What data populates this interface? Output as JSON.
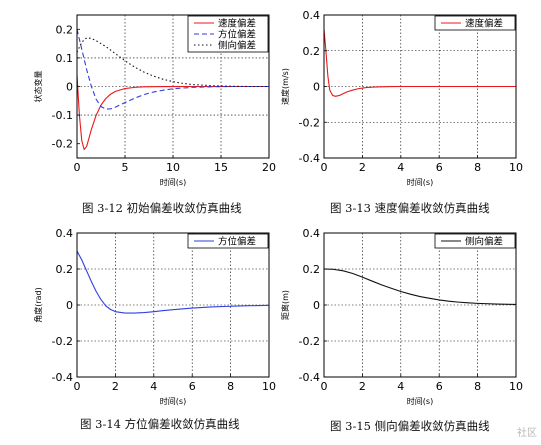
{
  "captions": {
    "fig1": "图 3-12    初始偏差收敛仿真曲线",
    "fig2": "图 3-13  速度偏差收敛仿真曲线",
    "fig3": "图 3-14    方位偏差收敛仿真曲线",
    "fig4": "图 3-15    侧向偏差收敛仿真曲线"
  },
  "watermark": "社区",
  "chart_data": [
    {
      "type": "line",
      "xlabel": "时间(s)",
      "ylabel": "状态变量",
      "xlim": [
        0,
        20
      ],
      "ylim": [
        -0.25,
        0.25
      ],
      "xticks": [
        0,
        5,
        10,
        15,
        20
      ],
      "yticks": [
        -0.2,
        -0.1,
        0,
        0.1,
        0.2
      ],
      "xtick_labels": [
        "0",
        "5",
        "10",
        "15",
        "20"
      ],
      "ytick_labels": [
        "-0.2",
        "-0.1",
        "0",
        "0.1",
        "0.2"
      ],
      "grid": true,
      "legend_position": "top-right",
      "series": [
        {
          "name": "速度偏差",
          "color": "#e8191b",
          "dash": "solid",
          "x": [
            0,
            0.25,
            0.5,
            0.75,
            1.0,
            1.25,
            1.5,
            2.0,
            2.5,
            3.0,
            3.5,
            4.0,
            5.0,
            6.0,
            7.0,
            8.0,
            9.0,
            10.0,
            12.0,
            14.0,
            16.0,
            18.0,
            20.0
          ],
          "y": [
            0.04,
            -0.1,
            -0.19,
            -0.22,
            -0.21,
            -0.18,
            -0.15,
            -0.1,
            -0.065,
            -0.042,
            -0.027,
            -0.017,
            -0.007,
            -0.003,
            -0.0012,
            -0.0005,
            -0.0002,
            -0.0001,
            0,
            0,
            0,
            0,
            0
          ]
        },
        {
          "name": "方位偏差",
          "color": "#2f3ee0",
          "dash": "dash",
          "x": [
            0,
            0.5,
            1.0,
            1.5,
            2.0,
            2.5,
            3.0,
            3.5,
            4.0,
            5.0,
            6.0,
            7.0,
            8.0,
            9.0,
            10.0,
            12.0,
            14.0,
            16.0,
            18.0,
            20.0
          ],
          "y": [
            0.2,
            0.13,
            0.06,
            0.0,
            -0.045,
            -0.07,
            -0.079,
            -0.078,
            -0.072,
            -0.056,
            -0.041,
            -0.028,
            -0.019,
            -0.013,
            -0.008,
            -0.003,
            -0.001,
            0,
            0,
            0
          ]
        },
        {
          "name": "侧向偏差",
          "color": "#111111",
          "dash": "dot",
          "x": [
            0,
            0.5,
            1.0,
            1.5,
            2.0,
            3.0,
            4.0,
            5.0,
            6.0,
            7.0,
            8.0,
            9.0,
            10.0,
            11.0,
            12.0,
            14.0,
            16.0,
            18.0,
            20.0
          ],
          "y": [
            0.12,
            0.155,
            0.17,
            0.168,
            0.16,
            0.14,
            0.115,
            0.09,
            0.068,
            0.05,
            0.036,
            0.025,
            0.017,
            0.011,
            0.007,
            0.003,
            0.001,
            0,
            0
          ]
        }
      ]
    },
    {
      "type": "line",
      "xlabel": "时间(s)",
      "ylabel": "速度(m/s)",
      "xlim": [
        0,
        10
      ],
      "ylim": [
        -0.4,
        0.4
      ],
      "xticks": [
        0,
        2,
        4,
        6,
        8,
        10
      ],
      "yticks": [
        -0.4,
        -0.2,
        0,
        0.2,
        0.4
      ],
      "xtick_labels": [
        "0",
        "2",
        "4",
        "6",
        "8",
        "10"
      ],
      "ytick_labels": [
        "-0.4",
        "-0.2",
        "0",
        "0.2",
        "0.4"
      ],
      "grid": true,
      "legend_position": "top-right",
      "series": [
        {
          "name": "速度偏差",
          "color": "#e8191b",
          "dash": "solid",
          "x": [
            0,
            0.1,
            0.2,
            0.3,
            0.45,
            0.6,
            0.8,
            1.0,
            1.2,
            1.5,
            1.8,
            2.2,
            2.6,
            3.0,
            3.5,
            4.0,
            5.0,
            6.0,
            7.0,
            8.0,
            9.0,
            10.0
          ],
          "y": [
            0.32,
            0.2,
            0.06,
            -0.02,
            -0.05,
            -0.055,
            -0.05,
            -0.04,
            -0.03,
            -0.02,
            -0.012,
            -0.006,
            -0.003,
            -0.0015,
            -0.0005,
            0,
            0,
            0,
            0,
            0,
            0,
            0
          ]
        }
      ]
    },
    {
      "type": "line",
      "xlabel": "时间(s)",
      "ylabel": "角度(rad)",
      "xlim": [
        0,
        10
      ],
      "ylim": [
        -0.4,
        0.4
      ],
      "xticks": [
        0,
        2,
        4,
        6,
        8,
        10
      ],
      "yticks": [
        -0.4,
        -0.2,
        0,
        0.2,
        0.4
      ],
      "xtick_labels": [
        "0",
        "2",
        "4",
        "6",
        "8",
        "10"
      ],
      "ytick_labels": [
        "-0.4",
        "-0.2",
        "0",
        "0.2",
        "0.4"
      ],
      "grid": true,
      "legend_position": "top-right",
      "series": [
        {
          "name": "方位偏差",
          "color": "#2f3ee0",
          "dash": "solid",
          "x": [
            0,
            0.25,
            0.5,
            0.75,
            1.0,
            1.25,
            1.5,
            1.75,
            2.0,
            2.5,
            3.0,
            3.5,
            4.0,
            4.5,
            5.0,
            6.0,
            7.0,
            8.0,
            9.0,
            10.0
          ],
          "y": [
            0.3,
            0.25,
            0.19,
            0.13,
            0.075,
            0.03,
            -0.005,
            -0.025,
            -0.037,
            -0.045,
            -0.045,
            -0.042,
            -0.037,
            -0.031,
            -0.026,
            -0.017,
            -0.011,
            -0.007,
            -0.004,
            -0.002
          ]
        }
      ]
    },
    {
      "type": "line",
      "xlabel": "时间(s)",
      "ylabel": "距离(m)",
      "xlim": [
        0,
        10
      ],
      "ylim": [
        -0.4,
        0.4
      ],
      "xticks": [
        0,
        2,
        4,
        6,
        8,
        10
      ],
      "yticks": [
        -0.4,
        -0.2,
        0,
        0.2,
        0.4
      ],
      "xtick_labels": [
        "0",
        "2",
        "4",
        "6",
        "8",
        "10"
      ],
      "ytick_labels": [
        "-0.4",
        "-0.2",
        "0",
        "0.2",
        "0.4"
      ],
      "grid": true,
      "legend_position": "top-right",
      "series": [
        {
          "name": "侧向偏差",
          "color": "#111111",
          "dash": "solid",
          "x": [
            0,
            0.5,
            1.0,
            1.5,
            2.0,
            2.5,
            3.0,
            3.5,
            4.0,
            4.5,
            5.0,
            5.5,
            6.0,
            6.5,
            7.0,
            7.5,
            8.0,
            9.0,
            10.0
          ],
          "y": [
            0.2,
            0.198,
            0.19,
            0.175,
            0.155,
            0.133,
            0.112,
            0.093,
            0.075,
            0.06,
            0.047,
            0.037,
            0.028,
            0.021,
            0.016,
            0.012,
            0.009,
            0.005,
            0.003
          ]
        }
      ]
    }
  ]
}
